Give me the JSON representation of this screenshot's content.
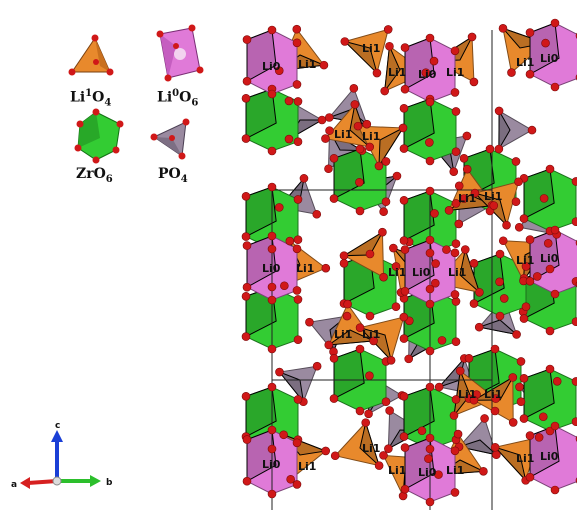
{
  "legend": {
    "items": [
      {
        "id": "li1o4",
        "label_main": "Li",
        "label_sup": "1",
        "label_mid": "O",
        "label_sub": "4",
        "color": "#e8892c"
      },
      {
        "id": "li0o6",
        "label_main": "Li",
        "label_sup": "0",
        "label_mid": "O",
        "label_sub": "6",
        "color": "#e07ad8"
      },
      {
        "id": "zro6",
        "label_main": "ZrO",
        "label_sup": "",
        "label_mid": "",
        "label_sub": "6",
        "color": "#33cc33"
      },
      {
        "id": "po4",
        "label_main": "PO",
        "label_sup": "",
        "label_mid": "",
        "label_sub": "4",
        "color": "#9a8aa0"
      }
    ]
  },
  "axes": {
    "c": "c",
    "a": "a",
    "b": "b",
    "c_color": "#1a3fd6",
    "a_color": "#d62020",
    "b_color": "#2cbf2c"
  },
  "structure": {
    "labels": {
      "li0": "Li0",
      "li1": "Li1"
    },
    "colors": {
      "li0": "#e07ad8",
      "li1": "#e8892c",
      "zr": "#33cc33",
      "p": "#9a8aa0",
      "oxygen": "#d01818"
    }
  }
}
